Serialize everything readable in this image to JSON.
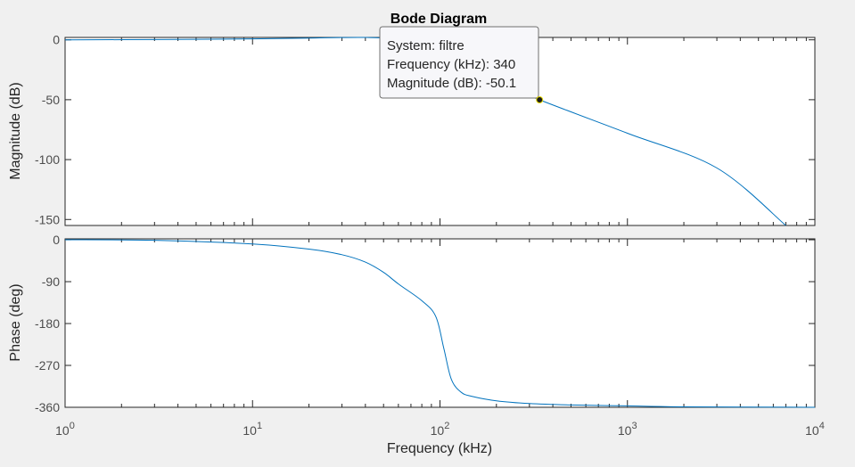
{
  "chart_data": {
    "type": "line",
    "title": "Bode Diagram",
    "xlabel": "Frequency  (kHz)",
    "x_scale": "log",
    "xlim": [
      1,
      10000
    ],
    "x_ticks": [
      {
        "base": "10",
        "exp": "0"
      },
      {
        "base": "10",
        "exp": "1"
      },
      {
        "base": "10",
        "exp": "2"
      },
      {
        "base": "10",
        "exp": "3"
      },
      {
        "base": "10",
        "exp": "4"
      }
    ],
    "grid": false,
    "line_color": "#0072bd",
    "panels": [
      {
        "name": "magnitude",
        "ylabel": "Magnitude (dB)",
        "ylim": [
          -155,
          2
        ],
        "y_ticks": [
          0,
          -50,
          -100,
          -150
        ],
        "series": [
          {
            "x": [
              1,
              3,
              10,
              20,
              40,
              60,
              90,
              130,
              200,
              340,
              1000,
              3000,
              7000
            ],
            "y": [
              0,
              0.2,
              0.8,
              1.5,
              2,
              0,
              -8,
              -20,
              -35,
              -50.1,
              -78,
              -107,
              -155
            ]
          }
        ]
      },
      {
        "name": "phase",
        "ylabel": "Phase (deg)",
        "ylim": [
          -360,
          2
        ],
        "y_ticks": [
          0,
          -90,
          -180,
          -270,
          -360
        ],
        "series": [
          {
            "x": [
              1,
              3,
              10,
              20,
              30,
              40,
              50,
              60,
              80,
              95,
              105,
              115,
              130,
              150,
              200,
              300,
              500,
              1000,
              2000,
              10000
            ],
            "y": [
              0,
              -1,
              -9,
              -20,
              -32,
              -48,
              -70,
              -95,
              -131,
              -165,
              -235,
              -300,
              -328,
              -337,
              -346,
              -352,
              -355,
              -357,
              -359,
              -360
            ]
          }
        ]
      }
    ],
    "datatip": {
      "x": 340,
      "y": -50.1,
      "lines": [
        "System: filtre",
        "Frequency (kHz): 340",
        "Magnitude (dB): -50.1"
      ]
    }
  }
}
